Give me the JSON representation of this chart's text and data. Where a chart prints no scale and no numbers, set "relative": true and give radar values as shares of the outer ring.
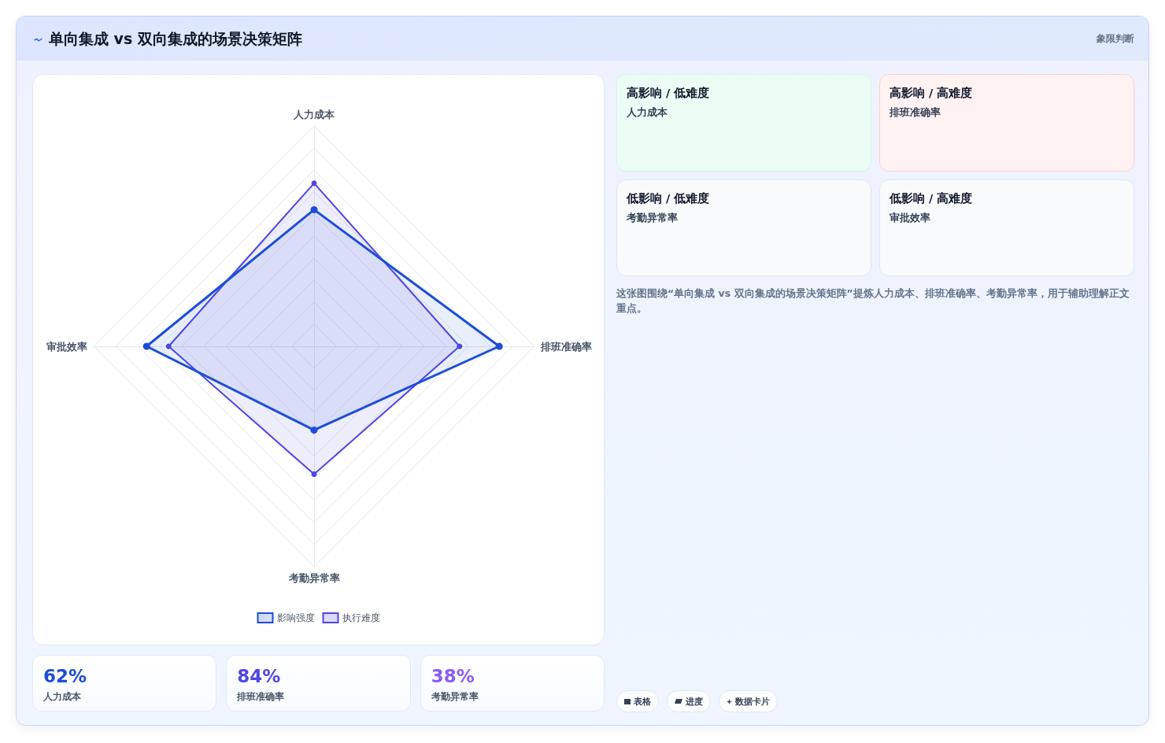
{
  "chart_data": [
    {
      "type": "radar",
      "title": "单向集成 vs 双向集成的场景决策矩阵",
      "categories": [
        "人力成本",
        "排班准确率",
        "考勤异常率",
        "审批效率"
      ],
      "relative": true,
      "series": [
        {
          "name": "影响强度",
          "color": "#1d4ed8",
          "values": [
            0.62,
            0.84,
            0.38,
            0.76
          ]
        },
        {
          "name": "执行难度",
          "color": "#4f46e5",
          "values": [
            0.74,
            0.66,
            0.58,
            0.66
          ]
        }
      ],
      "legend": "bottom",
      "marker": "circle",
      "grid": true
    },
    {
      "type": "other",
      "title": "象限判断",
      "categories": [
        "高影响 / 低难度",
        "高影响 / 高难度",
        "低影响 / 低难度",
        "低影响 / 高难度"
      ],
      "value_labels": [
        "人力成本",
        "排班准确率",
        "考勤异常率",
        "审批效率"
      ],
      "colors": [
        "#ecfdf5",
        "#fef2f2",
        "#f8fafc",
        "#f8fafc"
      ],
      "annotations": [
        "这张图围绕“单向集成 vs 双向集成的场景决策矩阵”提炼人力成本、排班准确率、考勤异常率，用于辅助理解正文重点。"
      ]
    },
    {
      "type": "other",
      "categories": [
        "人力成本",
        "排班准确率",
        "考勤异常率"
      ],
      "value_labels": [
        "62%",
        "84%",
        "38%"
      ]
    },
    {
      "type": "other",
      "categories": [
        "表格",
        "进度",
        "数据卡片"
      ]
    }
  ]
}
